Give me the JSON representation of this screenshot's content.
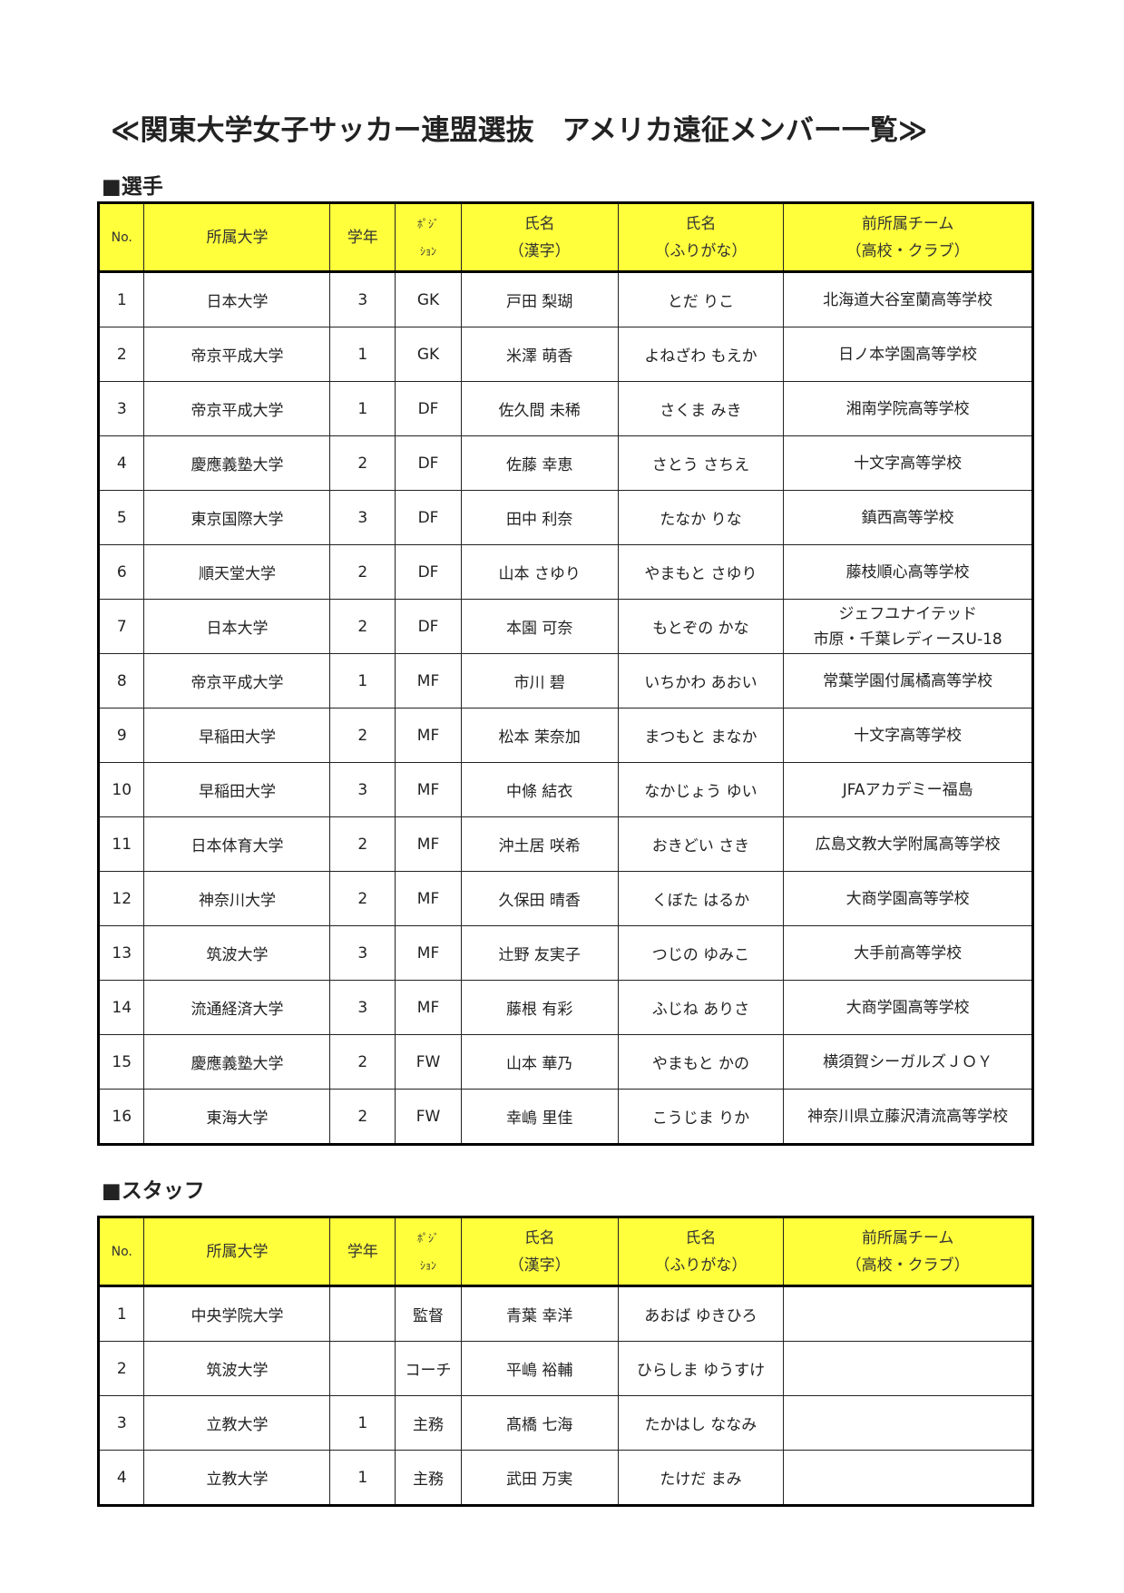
{
  "title": "≪関東大学女子サッカー連盟選抜　アメリカ遠征メンバー一覧≫",
  "headers": {
    "no": "No.",
    "university": "所属大学",
    "year": "学年",
    "position_1": "ﾎﾟｼﾞ",
    "position_2": "ｼｮﾝ",
    "name_kanji_1": "氏名",
    "name_kanji_2": "（漢字）",
    "name_kana_1": "氏名",
    "name_kana_2": "（ふりがな）",
    "prev_team_1": "前所属チーム",
    "prev_team_2": "（高校・クラブ）"
  },
  "players": {
    "heading": "■選手",
    "rows": [
      {
        "no": "1",
        "university": "日本大学",
        "year": "3",
        "position": "GK",
        "name_kanji": "戸田 梨瑚",
        "name_kana": "とだ りこ",
        "prev_team": "北海道大谷室蘭高等学校",
        "prev_team_2": ""
      },
      {
        "no": "2",
        "university": "帝京平成大学",
        "year": "1",
        "position": "GK",
        "name_kanji": "米澤 萌香",
        "name_kana": "よねざわ もえか",
        "prev_team": "日ノ本学園高等学校",
        "prev_team_2": ""
      },
      {
        "no": "3",
        "university": "帝京平成大学",
        "year": "1",
        "position": "DF",
        "name_kanji": "佐久間 未稀",
        "name_kana": "さくま みき",
        "prev_team": "湘南学院高等学校",
        "prev_team_2": ""
      },
      {
        "no": "4",
        "university": "慶應義塾大学",
        "year": "2",
        "position": "DF",
        "name_kanji": "佐藤 幸恵",
        "name_kana": "さとう さちえ",
        "prev_team": "十文字高等学校",
        "prev_team_2": ""
      },
      {
        "no": "5",
        "university": "東京国際大学",
        "year": "3",
        "position": "DF",
        "name_kanji": "田中 利奈",
        "name_kana": "たなか りな",
        "prev_team": "鎮西高等学校",
        "prev_team_2": ""
      },
      {
        "no": "6",
        "university": "順天堂大学",
        "year": "2",
        "position": "DF",
        "name_kanji": "山本 さゆり",
        "name_kana": "やまもと さゆり",
        "prev_team": "藤枝順心高等学校",
        "prev_team_2": ""
      },
      {
        "no": "7",
        "university": "日本大学",
        "year": "2",
        "position": "DF",
        "name_kanji": "本園 可奈",
        "name_kana": "もとぞの かな",
        "prev_team": "ジェフユナイテッド",
        "prev_team_2": "市原・千葉レディースU-18"
      },
      {
        "no": "8",
        "university": "帝京平成大学",
        "year": "1",
        "position": "MF",
        "name_kanji": "市川 碧",
        "name_kana": "いちかわ あおい",
        "prev_team": "常葉学園付属橘高等学校",
        "prev_team_2": ""
      },
      {
        "no": "9",
        "university": "早稲田大学",
        "year": "2",
        "position": "MF",
        "name_kanji": "松本 茉奈加",
        "name_kana": "まつもと まなか",
        "prev_team": "十文字高等学校",
        "prev_team_2": ""
      },
      {
        "no": "10",
        "university": "早稲田大学",
        "year": "3",
        "position": "MF",
        "name_kanji": "中條 結衣",
        "name_kana": "なかじょう ゆい",
        "prev_team": "JFAアカデミー福島",
        "prev_team_2": ""
      },
      {
        "no": "11",
        "university": "日本体育大学",
        "year": "2",
        "position": "MF",
        "name_kanji": "沖土居 咲希",
        "name_kana": "おきどい さき",
        "prev_team": "広島文教大学附属高等学校",
        "prev_team_2": ""
      },
      {
        "no": "12",
        "university": "神奈川大学",
        "year": "2",
        "position": "MF",
        "name_kanji": "久保田 晴香",
        "name_kana": "くぼた はるか",
        "prev_team": "大商学園高等学校",
        "prev_team_2": ""
      },
      {
        "no": "13",
        "university": "筑波大学",
        "year": "3",
        "position": "MF",
        "name_kanji": "辻野 友実子",
        "name_kana": "つじの ゆみこ",
        "prev_team": "大手前高等学校",
        "prev_team_2": ""
      },
      {
        "no": "14",
        "university": "流通経済大学",
        "year": "3",
        "position": "MF",
        "name_kanji": "藤根 有彩",
        "name_kana": "ふじね ありさ",
        "prev_team": "大商学園高等学校",
        "prev_team_2": ""
      },
      {
        "no": "15",
        "university": "慶應義塾大学",
        "year": "2",
        "position": "FW",
        "name_kanji": "山本 華乃",
        "name_kana": "やまもと かの",
        "prev_team": "横須賀シーガルズＪＯＹ",
        "prev_team_2": ""
      },
      {
        "no": "16",
        "university": "東海大学",
        "year": "2",
        "position": "FW",
        "name_kanji": "幸嶋 里佳",
        "name_kana": "こうじま りか",
        "prev_team": "神奈川県立藤沢清流高等学校",
        "prev_team_2": ""
      }
    ]
  },
  "staff": {
    "heading": "■スタッフ",
    "rows": [
      {
        "no": "1",
        "university": "中央学院大学",
        "year": "",
        "position": "監督",
        "name_kanji": "青葉 幸洋",
        "name_kana": "あおば ゆきひろ",
        "prev_team": "",
        "prev_team_2": ""
      },
      {
        "no": "2",
        "university": "筑波大学",
        "year": "",
        "position": "コーチ",
        "name_kanji": "平嶋 裕輔",
        "name_kana": "ひらしま ゆうすけ",
        "prev_team": "",
        "prev_team_2": ""
      },
      {
        "no": "3",
        "university": "立教大学",
        "year": "1",
        "position": "主務",
        "name_kanji": "髙橋 七海",
        "name_kana": "たかはし ななみ",
        "prev_team": "",
        "prev_team_2": ""
      },
      {
        "no": "4",
        "university": "立教大学",
        "year": "1",
        "position": "主務",
        "name_kanji": "武田 万実",
        "name_kana": "たけだ まみ",
        "prev_team": "",
        "prev_team_2": ""
      }
    ]
  },
  "colors": {
    "header_bg": "#ffff3c",
    "border": "#000000"
  }
}
